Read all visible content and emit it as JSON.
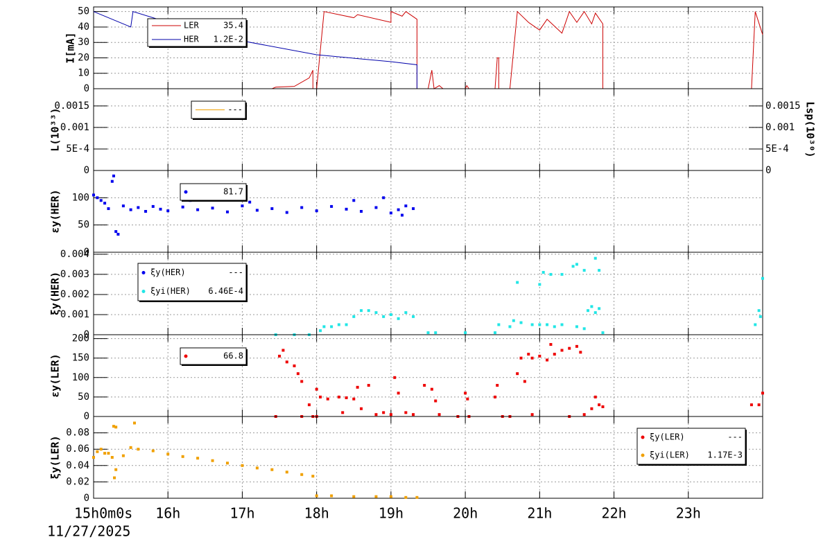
{
  "chart_data": [
    {
      "type": "line",
      "ylabel": "I[mA]",
      "ylim": [
        0,
        53
      ],
      "yticks": [
        0,
        10,
        20,
        30,
        40,
        50
      ],
      "grid": true,
      "series": [
        {
          "name": "LER",
          "color": "#cc0000",
          "legend_value": "35.4",
          "x": [
            15,
            17.4,
            17.45,
            17.7,
            17.9,
            17.95,
            17.95,
            18,
            18.1,
            18.5,
            18.55,
            19,
            19,
            19.15,
            19.2,
            19.35,
            19.35,
            19.5,
            19.55,
            19.58,
            19.65,
            19.7,
            20,
            20.02,
            20.05,
            20.4,
            20.43,
            20.45,
            20.45,
            20.6,
            20.7,
            20.85,
            21,
            21.1,
            21.3,
            21.4,
            21.5,
            21.6,
            21.7,
            21.75,
            21.85,
            21.85,
            23.85,
            23.9,
            24
          ],
          "values": [
            0,
            0,
            1,
            1.5,
            7,
            12,
            0,
            0,
            50,
            46,
            48,
            43,
            50,
            47,
            50,
            45,
            0,
            0,
            12,
            0,
            2,
            0,
            0,
            2,
            0,
            0,
            20,
            20,
            0,
            0,
            50,
            43,
            38,
            45,
            36,
            50,
            43,
            50,
            42,
            49,
            42,
            0,
            0,
            50,
            35
          ]
        },
        {
          "name": "HER",
          "color": "#0000aa",
          "legend_value": "1.2E-2",
          "x": [
            15,
            15.5,
            15.53,
            16,
            17,
            18,
            19,
            19.35,
            19.35,
            24
          ],
          "values": [
            50,
            40,
            50,
            43,
            31,
            22,
            17.5,
            15.5,
            0,
            0
          ]
        }
      ]
    },
    {
      "type": "line",
      "ylabel": "L(10³³)",
      "y2label": "Lsp(10³⁰)",
      "ylim": [
        0,
        0.0019
      ],
      "yticks": [
        0,
        {
          "value": 0.0005,
          "label": "5E-4"
        },
        0.001,
        0.0015
      ],
      "y2lim": [
        0,
        0.0019
      ],
      "y2ticks": [
        0,
        {
          "value": 0.0005,
          "label": "5E-4"
        },
        0.001,
        0.0015
      ],
      "grid": true,
      "series": [
        {
          "name": "",
          "color": "#f0a000",
          "legend_value": "---",
          "x": [],
          "values": []
        }
      ]
    },
    {
      "type": "scatter",
      "ylabel": "εy(HER)",
      "ylim": [
        0,
        150
      ],
      "yticks": [
        0,
        50,
        100
      ],
      "grid": true,
      "series": [
        {
          "name": "",
          "color": "#0000ee",
          "legend_value": "81.7",
          "x": [
            15,
            15.05,
            15.1,
            15.15,
            15.2,
            15.25,
            15.27,
            15.3,
            15.33,
            15.4,
            15.5,
            15.6,
            15.7,
            15.8,
            15.9,
            16,
            16.2,
            16.4,
            16.6,
            16.8,
            17,
            17.2,
            17.4,
            17.6,
            17.8,
            18,
            18.2,
            18.4,
            18.6,
            18.8,
            19,
            19.1,
            19.2,
            19.3,
            18.5,
            17.1,
            16.3,
            18.9,
            19.15
          ],
          "values": [
            105,
            100,
            95,
            90,
            80,
            130,
            140,
            38,
            33,
            85,
            78,
            82,
            75,
            84,
            79,
            76,
            83,
            78,
            81,
            74,
            85,
            77,
            80,
            73,
            82,
            76,
            84,
            79,
            75,
            82,
            72,
            78,
            85,
            80,
            95,
            92,
            95,
            100,
            68
          ]
        }
      ]
    },
    {
      "type": "scatter",
      "ylabel": "ξy(HER)",
      "ylim": [
        0,
        0.0041
      ],
      "yticks": [
        0,
        0.001,
        0.002,
        0.003,
        0.004
      ],
      "grid": true,
      "series": [
        {
          "name": "ξy(HER)",
          "color": "#0000ee",
          "legend_value": "---",
          "x": [],
          "values": []
        },
        {
          "name": "ξyi(HER)",
          "color": "#22e6e6",
          "legend_value": "6.46E-4",
          "x": [
            17.45,
            17.7,
            17.9,
            18.05,
            18.1,
            18.2,
            18.3,
            18.4,
            18.5,
            18.6,
            18.7,
            18.8,
            18.9,
            19,
            19.1,
            19.2,
            19.3,
            19.5,
            19.6,
            20,
            20.4,
            20.45,
            20.6,
            20.65,
            20.75,
            20.9,
            21,
            21.1,
            21.2,
            21.3,
            21.5,
            21.6,
            21.65,
            21.7,
            21.75,
            21.8,
            21.85,
            20.7,
            21,
            21.05,
            21.15,
            21.3,
            21.45,
            21.5,
            21.6,
            21.75,
            21.8,
            23.9,
            23.95,
            24,
            23.97
          ],
          "values": [
            0,
            0,
            0,
            0.0002,
            0.0004,
            0.0004,
            0.0005,
            0.0005,
            0.0009,
            0.0012,
            0.0012,
            0.0011,
            0.0009,
            0.001,
            0.0008,
            0.0011,
            0.0009,
            0.0001,
            0.0001,
            0.0001,
            0.0001,
            0.0005,
            0.0004,
            0.0007,
            0.0006,
            0.0005,
            0.0005,
            0.0005,
            0.0004,
            0.0005,
            0.0004,
            0.0003,
            0.0012,
            0.0014,
            0.0011,
            0.0013,
            0.0001,
            0.0026,
            0.0025,
            0.0031,
            0.003,
            0.003,
            0.0034,
            0.0035,
            0.0032,
            0.0038,
            0.0032,
            0.0005,
            0.0012,
            0.0028,
            0.0009
          ]
        }
      ]
    },
    {
      "type": "scatter",
      "ylabel": "εy(LER)",
      "ylim": [
        0,
        210
      ],
      "yticks": [
        0,
        50,
        100,
        150,
        200
      ],
      "grid": true,
      "series": [
        {
          "name": "",
          "color": "#ee0000",
          "legend_value": "66.8",
          "x": [
            17.45,
            17.5,
            17.55,
            17.6,
            17.7,
            17.75,
            17.8,
            17.8,
            18,
            17.95,
            17.9,
            18,
            18.05,
            18.15,
            18.3,
            18.4,
            18.5,
            18.55,
            18.6,
            18.7,
            18.8,
            18.9,
            19,
            19.05,
            19.1,
            19.2,
            19.3,
            18.35,
            19.45,
            19.55,
            19.6,
            19.65,
            19.9,
            20,
            20.03,
            20.05,
            20.4,
            20.43,
            20.5,
            20.6,
            20.7,
            20.75,
            20.8,
            20.85,
            20.9,
            21,
            21.1,
            21.15,
            21.2,
            21.3,
            21.4,
            21.5,
            21.55,
            20.9,
            21.4,
            21.6,
            21.7,
            21.75,
            21.8,
            21.85,
            23.85,
            23.95,
            24
          ],
          "values": [
            0,
            155,
            170,
            140,
            130,
            110,
            90,
            0,
            0,
            0,
            30,
            70,
            50,
            45,
            50,
            48,
            45,
            75,
            20,
            80,
            5,
            10,
            5,
            100,
            60,
            10,
            5,
            10,
            80,
            70,
            40,
            5,
            0,
            60,
            45,
            0,
            50,
            80,
            0,
            0,
            110,
            150,
            90,
            160,
            150,
            155,
            145,
            185,
            160,
            170,
            175,
            180,
            165,
            5,
            0,
            5,
            20,
            50,
            30,
            25,
            30,
            30,
            60
          ]
        }
      ]
    },
    {
      "type": "scatter",
      "ylabel": "ξy(LER)",
      "ylim": [
        0,
        0.1
      ],
      "yticks": [
        0,
        0.02,
        0.04,
        0.06,
        0.08
      ],
      "grid": true,
      "date": "11/27/2025",
      "xlim": [
        15,
        24
      ],
      "xticks": [
        {
          "value": 15,
          "label": "15h0m0s"
        },
        {
          "value": 16,
          "label": "16h"
        },
        {
          "value": 17,
          "label": "17h"
        },
        {
          "value": 18,
          "label": "18h"
        },
        {
          "value": 19,
          "label": "19h"
        },
        {
          "value": 20,
          "label": "20h"
        },
        {
          "value": 21,
          "label": "21h"
        },
        {
          "value": 22,
          "label": "22h"
        },
        {
          "value": 23,
          "label": "23h"
        }
      ],
      "series": [
        {
          "name": "ξy(LER)",
          "color": "#ee0000",
          "legend_value": "---",
          "x": [],
          "values": []
        },
        {
          "name": "ξyi(LER)",
          "color": "#f0a000",
          "legend_value": "1.17E-3",
          "x": [
            15,
            15.05,
            15.1,
            15.15,
            15.2,
            15.25,
            15.27,
            15.3,
            15.28,
            15.3,
            15.4,
            15.5,
            15.55,
            15.6,
            15.8,
            16,
            16.2,
            16.4,
            16.6,
            16.8,
            17,
            17.2,
            17.4,
            17.6,
            17.8,
            17.95,
            18,
            18.2,
            18.5,
            18.8,
            19,
            19.2,
            19.35
          ],
          "values": [
            0.05,
            0.057,
            0.06,
            0.055,
            0.055,
            0.05,
            0.088,
            0.087,
            0.025,
            0.035,
            0.052,
            0.062,
            0.092,
            0.06,
            0.058,
            0.054,
            0.051,
            0.049,
            0.046,
            0.043,
            0.04,
            0.037,
            0.035,
            0.032,
            0.029,
            0.027,
            0.003,
            0.003,
            0.002,
            0.002,
            0.002,
            0.001,
            0.001
          ]
        }
      ]
    }
  ]
}
